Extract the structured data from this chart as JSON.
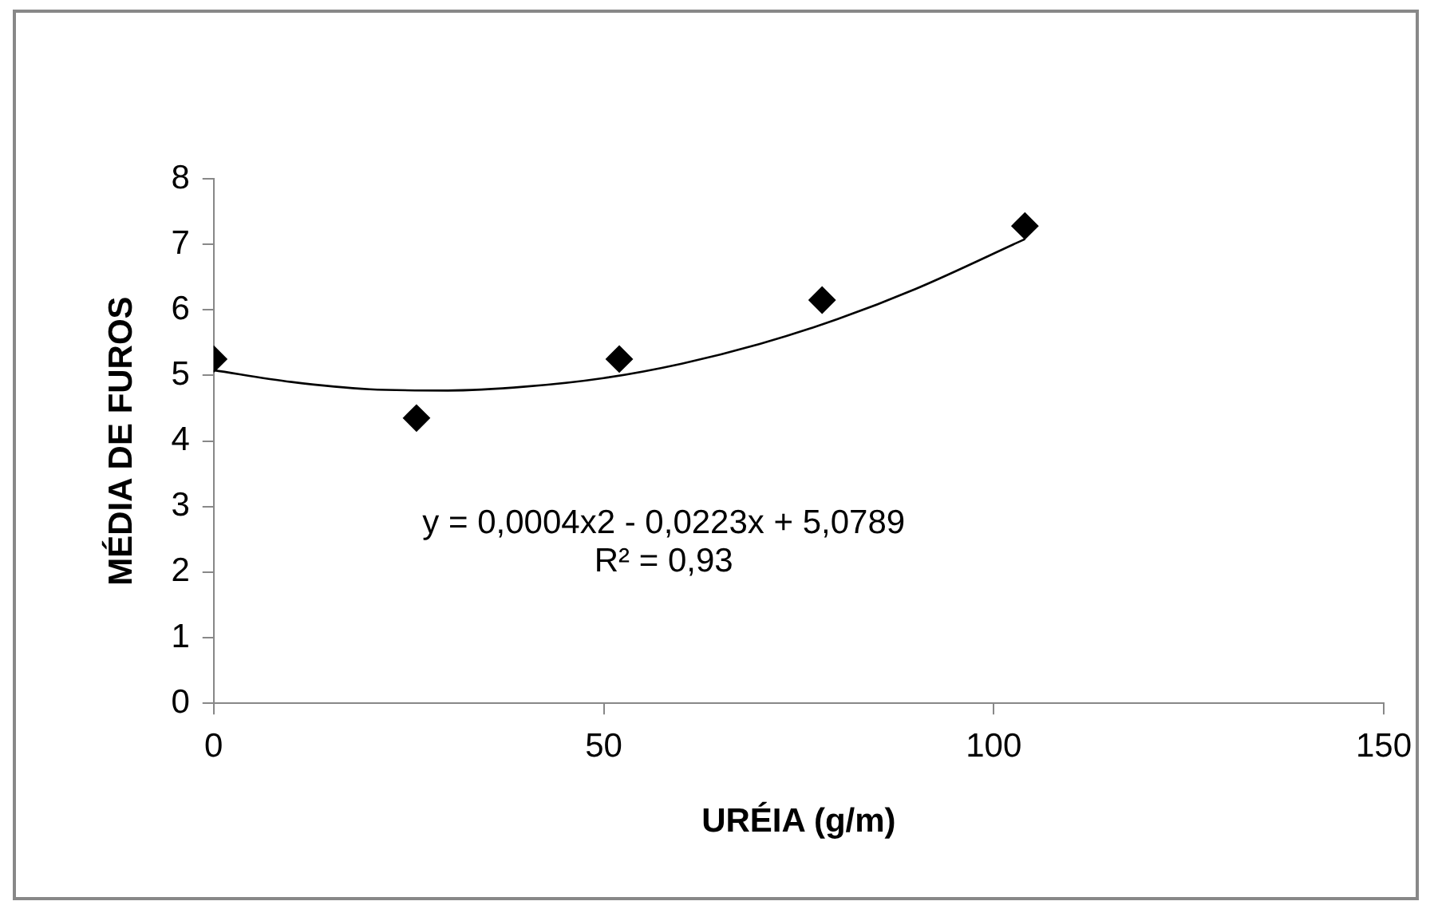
{
  "chart_data": {
    "type": "scatter",
    "xlabel": "URÉIA (g/m)",
    "ylabel": "MÉDIA DE FUROS",
    "x": [
      0,
      26,
      52,
      78,
      104
    ],
    "series": [
      {
        "color": "#000000",
        "values": [
          5.25,
          4.35,
          5.25,
          6.15,
          7.28
        ]
      },
      {
        "type": "line",
        "marker": "none",
        "color": "#000000",
        "x": [
          0,
          10,
          20,
          30,
          40,
          50,
          60,
          70,
          80,
          90,
          104
        ],
        "values": [
          5.08,
          4.9,
          4.79,
          4.77,
          4.83,
          4.96,
          5.18,
          5.48,
          5.86,
          6.32,
          7.08
        ]
      }
    ],
    "marker": "diamond",
    "xlim": [
      0,
      150
    ],
    "xticks": [
      0,
      50,
      100,
      150
    ],
    "ylim": [
      0,
      8
    ],
    "yticks": [
      0,
      1,
      2,
      3,
      4,
      5,
      6,
      7,
      8
    ],
    "grid": false,
    "legend": false,
    "annotations": [
      "y = 0,0004x2 - 0,0223x + 5,0789",
      "R² = 0,93"
    ]
  }
}
